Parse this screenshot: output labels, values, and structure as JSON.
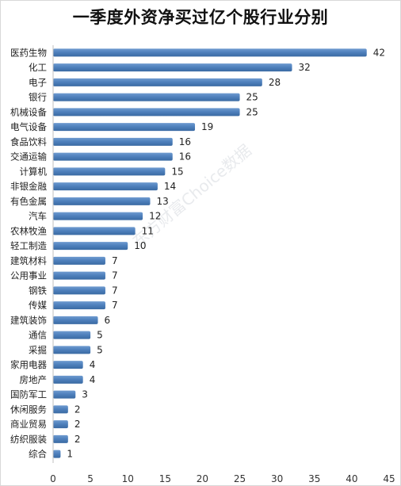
{
  "chart_data": {
    "type": "bar",
    "orientation": "horizontal",
    "title": "一季度外资净买过亿个股行业分别",
    "watermark": "东方财富Choice数据",
    "categories": [
      "医药生物",
      "化工",
      "电子",
      "银行",
      "机械设备",
      "电气设备",
      "食品饮料",
      "交通运输",
      "计算机",
      "非银金融",
      "有色金属",
      "汽车",
      "农林牧渔",
      "轻工制造",
      "建筑材料",
      "公用事业",
      "钢铁",
      "传媒",
      "建筑装饰",
      "通信",
      "采掘",
      "家用电器",
      "房地产",
      "国防军工",
      "休闲服务",
      "商业贸易",
      "纺织服装",
      "综合"
    ],
    "values": [
      42,
      32,
      28,
      25,
      25,
      19,
      16,
      16,
      15,
      14,
      13,
      12,
      11,
      10,
      7,
      7,
      7,
      7,
      6,
      5,
      5,
      4,
      4,
      3,
      2,
      2,
      2,
      1
    ],
    "xlim": [
      0,
      45
    ],
    "xticks": [
      0,
      5,
      10,
      15,
      20,
      25,
      30,
      35,
      40,
      45
    ],
    "grid": false,
    "bar_color": "#4f81bd"
  }
}
